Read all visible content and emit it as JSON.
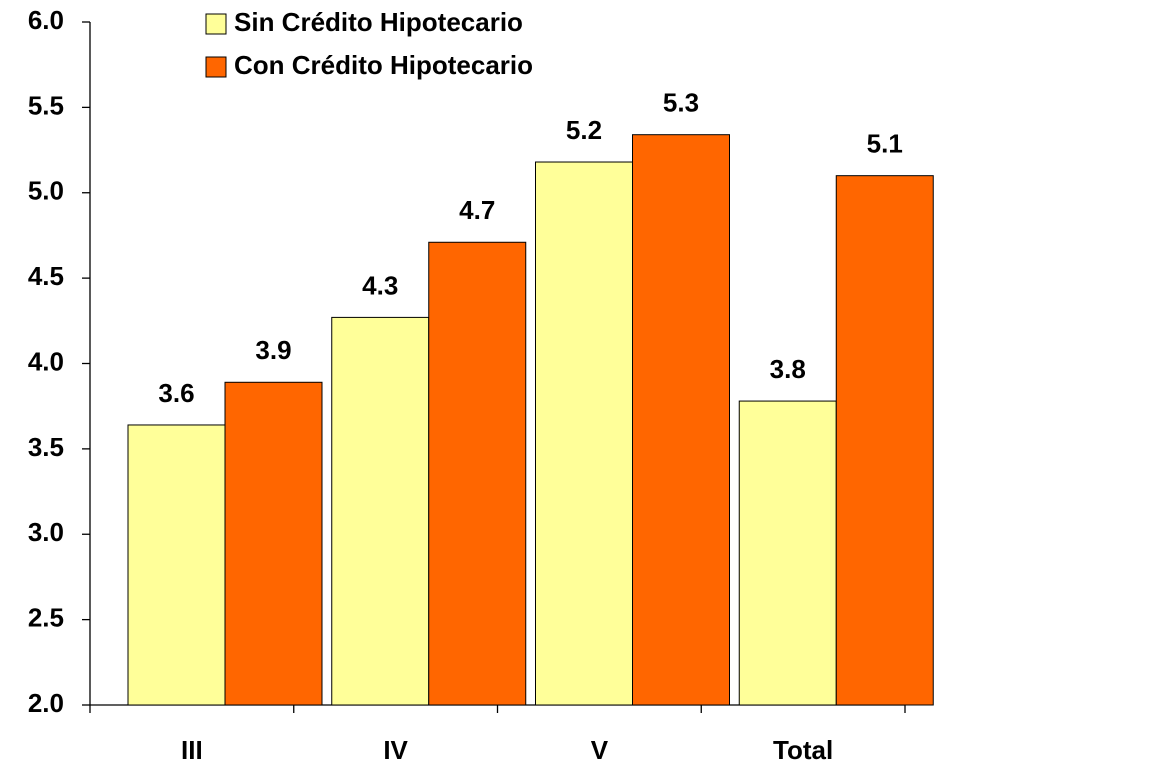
{
  "chart_data": {
    "type": "bar",
    "categories": [
      "III",
      "IV",
      "V",
      "Total"
    ],
    "series": [
      {
        "name": "Sin Crédito Hipotecario",
        "color": "#ffff99",
        "values": [
          3.64,
          4.27,
          5.18,
          3.78
        ],
        "value_labels": [
          "3.6",
          "4.3",
          "5.2",
          "3.8"
        ]
      },
      {
        "name": "Con Crédito Hipotecario",
        "color": "#ff6600",
        "values": [
          3.89,
          4.71,
          5.34,
          5.1
        ],
        "value_labels": [
          "3.9",
          "4.7",
          "5.3",
          "5.1"
        ]
      }
    ],
    "ylim": [
      2,
      6
    ],
    "yticks": [
      {
        "value": 2,
        "label": "2.0"
      },
      {
        "value": 2.5,
        "label": "2.5"
      },
      {
        "value": 3,
        "label": "3.0"
      },
      {
        "value": 3.5,
        "label": "3.5"
      },
      {
        "value": 4,
        "label": "4.0"
      },
      {
        "value": 4.5,
        "label": "4.5"
      },
      {
        "value": 5,
        "label": "5.0"
      },
      {
        "value": 5.5,
        "label": "5.5"
      },
      {
        "value": 6,
        "label": "6.0"
      }
    ],
    "legend": "top-left",
    "grid": false
  }
}
